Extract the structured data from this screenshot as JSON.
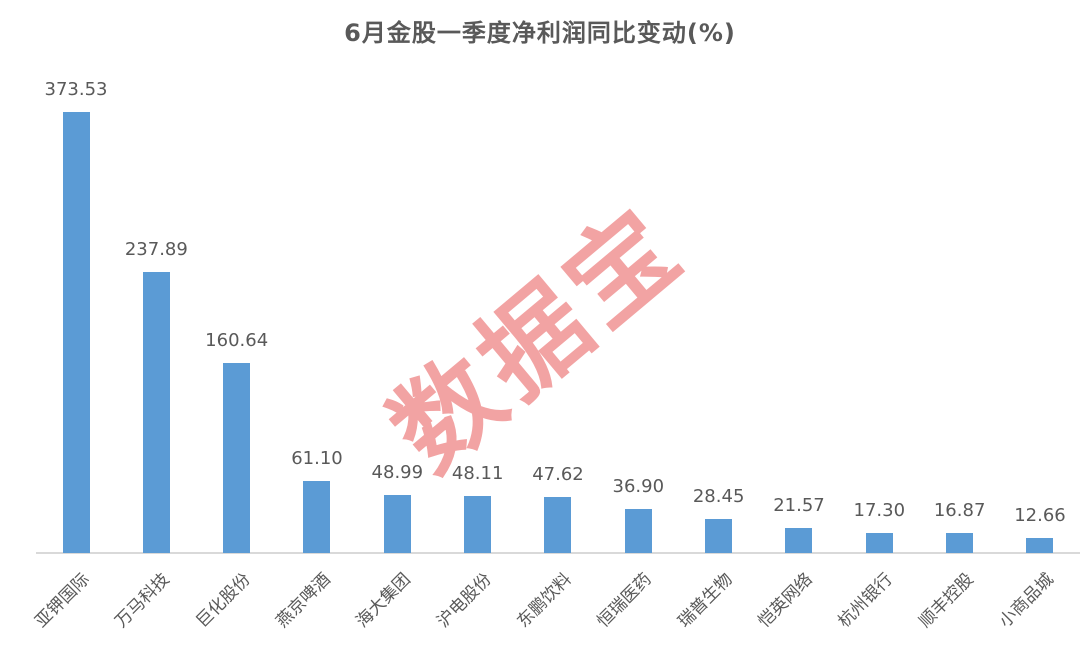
{
  "chart_data": {
    "type": "bar",
    "title": "6月金股一季度净利润同比变动(%)",
    "categories": [
      "亚钾国际",
      "万马科技",
      "巨化股份",
      "燕京啤酒",
      "海大集团",
      "沪电股份",
      "东鹏饮料",
      "恒瑞医药",
      "瑞普生物",
      "恺英网络",
      "杭州银行",
      "顺丰控股",
      "小商品城"
    ],
    "values": [
      373.53,
      237.89,
      160.64,
      61.1,
      48.99,
      48.11,
      47.62,
      36.9,
      28.45,
      21.57,
      17.3,
      16.87,
      12.66
    ],
    "value_labels": [
      "373.53",
      "237.89",
      "160.64",
      "61.10",
      "48.99",
      "48.11",
      "47.62",
      "36.90",
      "28.45",
      "21.57",
      "17.30",
      "16.87",
      "12.66"
    ],
    "xlabel": "",
    "ylabel": "",
    "ylim": [
      0,
      400
    ],
    "grid": false,
    "legend": false,
    "bar_color": "#5B9BD5",
    "axis_line_color": "#D9D9D9",
    "text_color": "#595959",
    "watermark": {
      "text": "数据宝",
      "color": "#F2A3A3",
      "rotation_deg": -40
    }
  }
}
